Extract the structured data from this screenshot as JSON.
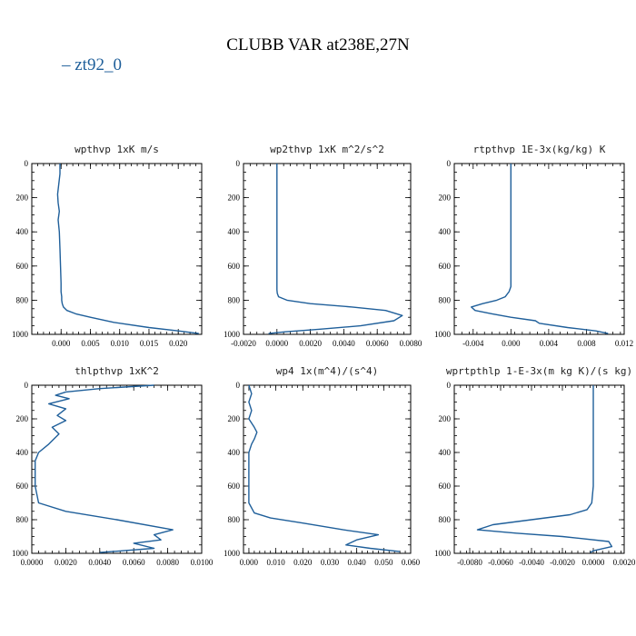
{
  "figure": {
    "title": "CLUBB VAR at238E,27N",
    "legend": [
      {
        "label": "zt92_0",
        "color": "#1f5f9a"
      }
    ]
  },
  "chart_data": [
    {
      "type": "line",
      "title": "wpthvp   1xK m/s",
      "xlim": [
        -0.005,
        0.024
      ],
      "ylim": [
        1000,
        0
      ],
      "xticks": [
        0.0,
        0.005,
        0.01,
        0.015,
        0.02
      ],
      "xtick_labels": [
        "0.000",
        "0.005",
        "0.010",
        "0.015",
        "0.020"
      ],
      "yticks": [
        0,
        200,
        400,
        600,
        800,
        1000
      ],
      "ytick_labels": [
        "0",
        "200",
        "400",
        "600",
        "800",
        "1000"
      ],
      "series": [
        {
          "name": "zt92_0",
          "x": [
            -0.0002,
            -0.0002,
            -0.0004,
            -0.0006,
            -0.0005,
            -0.0003,
            -0.0005,
            -0.0003,
            -0.0002,
            -0.0001,
            0.0,
            0.0,
            0.0001,
            0.0001,
            0.0002,
            0.0004,
            0.001,
            0.0025,
            0.005,
            0.009,
            0.015,
            0.02,
            0.0235
          ],
          "y": [
            0,
            60,
            120,
            180,
            230,
            280,
            330,
            400,
            500,
            600,
            700,
            750,
            780,
            800,
            820,
            840,
            860,
            880,
            900,
            930,
            960,
            980,
            995
          ]
        }
      ]
    },
    {
      "type": "line",
      "title": "wp2thvp   1xK m^2/s^2",
      "xlim": [
        -0.002,
        0.008
      ],
      "ylim": [
        1000,
        0
      ],
      "xticks": [
        -0.002,
        0.0,
        0.002,
        0.004,
        0.006,
        0.008
      ],
      "xtick_labels": [
        "-0.0020",
        "0.0000",
        "0.0020",
        "0.0040",
        "0.0060",
        "0.0080"
      ],
      "yticks": [
        0,
        200,
        400,
        600,
        800,
        1000
      ],
      "ytick_labels": [
        "0",
        "200",
        "400",
        "600",
        "800",
        "1000"
      ],
      "series": [
        {
          "name": "zt92_0",
          "x": [
            0.0,
            0.0,
            0.0,
            0.0,
            0.0,
            2e-05,
            0.0001,
            0.0006,
            0.002,
            0.0045,
            0.0065,
            0.0075,
            0.007,
            0.005,
            0.0025,
            0.0005,
            -0.0005
          ],
          "y": [
            0,
            200,
            400,
            600,
            740,
            760,
            780,
            800,
            820,
            840,
            860,
            890,
            920,
            950,
            970,
            985,
            995
          ]
        }
      ]
    },
    {
      "type": "line",
      "title": "rtpthvp   1E-3x(kg/kg) K",
      "xlim": [
        -0.006,
        0.012
      ],
      "ylim": [
        1000,
        0
      ],
      "xticks": [
        -0.004,
        0.0,
        0.004,
        0.008,
        0.012
      ],
      "xtick_labels": [
        "-0.004",
        "0.000",
        "0.004",
        "0.008",
        "0.012"
      ],
      "yticks": [
        0,
        200,
        400,
        600,
        800,
        1000
      ],
      "ytick_labels": [
        "0",
        "200",
        "400",
        "600",
        "800",
        "1000"
      ],
      "series": [
        {
          "name": "zt92_0",
          "x": [
            0.0,
            0.0,
            0.0,
            0.0,
            0.0,
            -0.0002,
            -0.0006,
            -0.0015,
            -0.003,
            -0.0042,
            -0.0038,
            -0.002,
            0.0,
            0.0026,
            0.003,
            0.006,
            0.009,
            0.0103
          ],
          "y": [
            0,
            200,
            400,
            600,
            720,
            750,
            780,
            800,
            820,
            840,
            860,
            880,
            900,
            920,
            935,
            960,
            980,
            995
          ]
        }
      ]
    },
    {
      "type": "line",
      "title": "thlpthvp   1xK^2",
      "xlim": [
        0.0,
        0.01
      ],
      "ylim": [
        1000,
        0
      ],
      "xticks": [
        0.0,
        0.002,
        0.004,
        0.006,
        0.008,
        0.01
      ],
      "xtick_labels": [
        "0.0000",
        "0.0020",
        "0.0040",
        "0.0060",
        "0.0080",
        "0.0100"
      ],
      "yticks": [
        0,
        200,
        400,
        600,
        800,
        1000
      ],
      "ytick_labels": [
        "0",
        "200",
        "400",
        "600",
        "800",
        "1000"
      ],
      "series": [
        {
          "name": "zt92_0",
          "x": [
            0.0072,
            0.004,
            0.002,
            0.0014,
            0.0022,
            0.001,
            0.002,
            0.0015,
            0.002,
            0.0012,
            0.0016,
            0.001,
            0.0004,
            0.0002,
            0.0002,
            0.0002,
            0.0004,
            0.002,
            0.005,
            0.0083,
            0.0072,
            0.0076,
            0.006,
            0.0072,
            0.004
          ],
          "y": [
            0,
            20,
            40,
            60,
            80,
            110,
            140,
            180,
            210,
            250,
            290,
            350,
            400,
            450,
            500,
            600,
            700,
            750,
            800,
            860,
            890,
            920,
            940,
            970,
            995
          ]
        }
      ]
    },
    {
      "type": "line",
      "title": "wp4   1x(m^4)/(s^4)",
      "xlim": [
        -0.002,
        0.06
      ],
      "ylim": [
        1000,
        0
      ],
      "xticks": [
        0.0,
        0.01,
        0.02,
        0.03,
        0.04,
        0.05,
        0.06
      ],
      "xtick_labels": [
        "0.000",
        "0.010",
        "0.020",
        "0.030",
        "0.040",
        "0.050",
        "0.060"
      ],
      "yticks": [
        0,
        200,
        400,
        600,
        800,
        1000
      ],
      "ytick_labels": [
        "0",
        "200",
        "400",
        "600",
        "800",
        "1000"
      ],
      "series": [
        {
          "name": "zt92_0",
          "x": [
            0.0,
            0.001,
            0.0,
            0.001,
            0.0,
            0.002,
            0.003,
            0.002,
            0.001,
            0.0,
            0.0,
            0.0,
            0.0,
            0.002,
            0.008,
            0.02,
            0.035,
            0.048,
            0.04,
            0.036,
            0.045,
            0.056
          ],
          "y": [
            0,
            50,
            100,
            150,
            200,
            250,
            280,
            320,
            350,
            400,
            500,
            600,
            700,
            760,
            790,
            820,
            860,
            890,
            920,
            950,
            970,
            990
          ]
        }
      ]
    },
    {
      "type": "line",
      "title": "wprtpthlp   1-E-3x(m kg K)/(s kg)",
      "xlim": [
        -0.009,
        0.002
      ],
      "ylim": [
        1000,
        0
      ],
      "xticks": [
        -0.008,
        -0.006,
        -0.004,
        -0.002,
        0.0,
        0.002
      ],
      "xtick_labels": [
        "-0.0080",
        "-0.0060",
        "-0.0040",
        "-0.0020",
        "0.0000",
        "0.0020"
      ],
      "yticks": [
        0,
        200,
        400,
        600,
        800,
        1000
      ],
      "ytick_labels": [
        "0",
        "200",
        "400",
        "600",
        "800",
        "1000"
      ],
      "series": [
        {
          "name": "zt92_0",
          "x": [
            0.0,
            0.0,
            0.0,
            0.0,
            -0.0001,
            -0.0004,
            -0.0015,
            -0.004,
            -0.0065,
            -0.0075,
            -0.005,
            -0.002,
            0.001,
            0.0012,
            0.0,
            -0.0002
          ],
          "y": [
            0,
            200,
            400,
            600,
            700,
            740,
            770,
            800,
            830,
            860,
            880,
            900,
            930,
            960,
            985,
            995
          ]
        }
      ]
    }
  ]
}
